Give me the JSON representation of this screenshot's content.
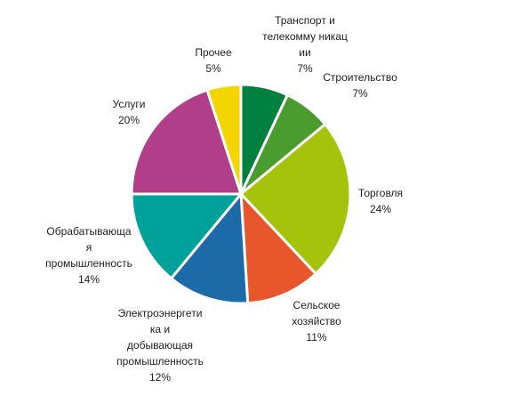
{
  "chart_data": {
    "type": "pie",
    "categories": [
      "Транспорт и\nтелекомму никац\nии",
      "Строительство",
      "Торговля",
      "Сельское\nхозяйство",
      "Электроэнергети\nка и\nдобывающая\nпромышленность",
      "Обрабатывающа\nя\nпромышленность",
      "Услуги",
      "Прочее"
    ],
    "values": [
      7,
      7,
      24,
      11,
      12,
      14,
      20,
      5
    ],
    "value_labels": [
      "7%",
      "7%",
      "24%",
      "11%",
      "12%",
      "14%",
      "20%",
      "5%"
    ],
    "colors": [
      "#00803f",
      "#4a9c2e",
      "#a5c30b",
      "#e8562c",
      "#1d6aa8",
      "#00a09b",
      "#b03e89",
      "#f3d500"
    ]
  }
}
